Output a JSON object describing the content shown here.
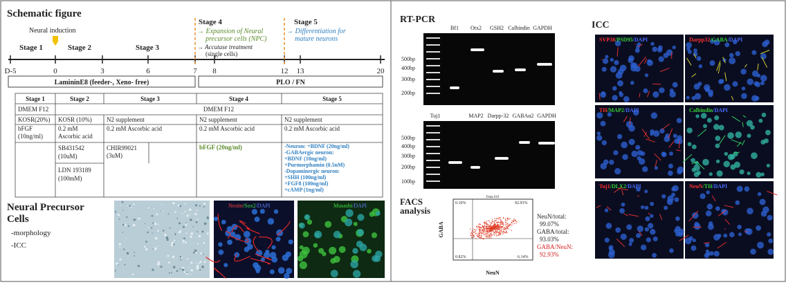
{
  "schematic": {
    "title": "Schematic figure",
    "induction": "Neural induction",
    "stages": [
      "Stage 1",
      "Stage 2",
      "Stage 3",
      "Stage 4",
      "Stage 5"
    ],
    "stage4_notes": [
      "→ Expansion of Neural",
      "precursor cells (NPC)",
      "→ Accutase treatment",
      "(single cells)"
    ],
    "stage5_notes": [
      "→ Differentiation for",
      "mature neurons"
    ],
    "days": [
      "D-5",
      "0",
      "3",
      "6",
      "7",
      "8",
      "12",
      "13",
      "20"
    ],
    "coatings": [
      "LamininE8 (feeder-, Xeno- free)",
      "PLO / FN"
    ]
  },
  "table": {
    "header": [
      "Stage 1",
      "Stage 2",
      "Stage 3",
      "Stage 4",
      "Stage 5"
    ],
    "rows": [
      [
        "DMEM F12",
        "DMEM F12"
      ],
      [
        "KOSR(20%)",
        "KOSR (10%)",
        "N2 supplement",
        "N2 supplement",
        "N2 supplement"
      ],
      [
        [
          "bFGF",
          "(10ng/ml)"
        ],
        [
          "0.2 mM",
          "Ascorbic acid"
        ],
        "0.2 mM Ascorbic acid",
        "0.2 mM Ascorbic acid",
        "0.2 mM Ascorbic acid"
      ],
      [
        [
          "SB431542",
          "(10uM)"
        ],
        [
          "CHIR99021",
          "(3uM)"
        ],
        "bFGF (20ng/ml)",
        [
          "-Neuron: +BDNF (20ng/ml)",
          "-GABAergic neuron:",
          "+BDNF (10ng/ml)",
          "+Purmorphamin (0.5nM)",
          "-Dopaminergic neuron:",
          "+SHH (100ng/ml)",
          "+FGF8 (100ng/ml)",
          "+cAMP (1ng/ml)"
        ]
      ],
      [
        [
          "LDN 193189",
          "(100mM)"
        ]
      ]
    ]
  },
  "npc": {
    "title": [
      "Neural Precursor",
      "Cells"
    ],
    "items": [
      "-morphology",
      "-ICC"
    ],
    "image_labels": [
      [
        "Nestin",
        "/Sox2",
        "/DAPI"
      ],
      [
        "Musashi",
        "/DAPI"
      ]
    ]
  },
  "rtpcr": {
    "title": "RT-PCR",
    "gel1": {
      "lanes": [
        "Bf1",
        "Otx2",
        "GSH2",
        "Calbindin",
        "GAPDH"
      ],
      "ladder": [
        "500bp",
        "400bp",
        "300bp",
        "200bp"
      ]
    },
    "gel2": {
      "lanes": [
        "Tuj1",
        "MAP2",
        "Darpp-32",
        "GABAα2",
        "GAPDH"
      ],
      "ladder": [
        "500bp",
        "400bp",
        "300bp",
        "200bp",
        "100bp"
      ]
    }
  },
  "facs": {
    "title": [
      "FACS",
      "analysis"
    ],
    "plot_title": "Data.010",
    "y_label": "GABA",
    "x_label": "NeuN",
    "quadrants": [
      "0.10%",
      "92.93%",
      "0.82%",
      "6.14%"
    ],
    "stats": [
      "NeuN/total:",
      "99.07%",
      "GABA/total:",
      "93.03%",
      "GABA/NeuN:",
      "92.93%"
    ]
  },
  "icc": {
    "title": "ICC",
    "panels": [
      [
        "SVP38",
        "/PSD95",
        "/DAPI"
      ],
      [
        "Darpp32",
        "/GABA",
        "/DAPI"
      ],
      [
        "TH",
        "/MAP2",
        "/DAPI"
      ],
      [
        "Calbindin",
        "/DAPI"
      ],
      [
        "Tuj1",
        "/DLX2",
        "/DAPI"
      ],
      [
        "NeuN",
        "/TH",
        "/DAPI"
      ]
    ]
  }
}
